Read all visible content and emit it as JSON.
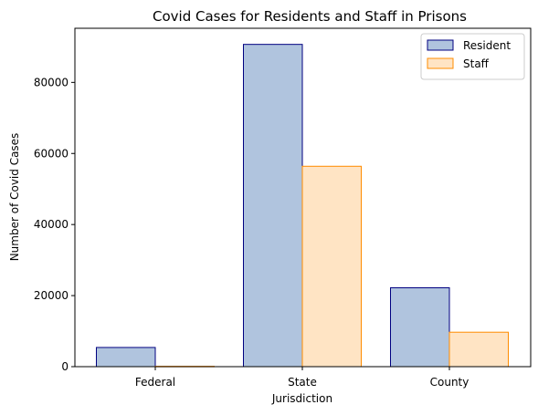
{
  "chart_data": {
    "type": "bar",
    "title": "Covid Cases for Residents and Staff in Prisons",
    "xlabel": "Jurisdiction",
    "ylabel": "Number of Covid Cases",
    "categories": [
      "Federal",
      "State",
      "County"
    ],
    "series": [
      {
        "name": "Resident",
        "values": [
          5400,
          90700,
          22200
        ],
        "fill": "#b0c4de",
        "stroke": "#000080"
      },
      {
        "name": "Staff",
        "values": [
          100,
          56400,
          9700
        ],
        "fill": "#ffe4c4",
        "stroke": "#ff8c00"
      }
    ],
    "ylim": [
      0,
      95235
    ],
    "yticks": [
      0,
      20000,
      40000,
      60000,
      80000
    ],
    "legend_position": "top-right",
    "grid": false
  }
}
